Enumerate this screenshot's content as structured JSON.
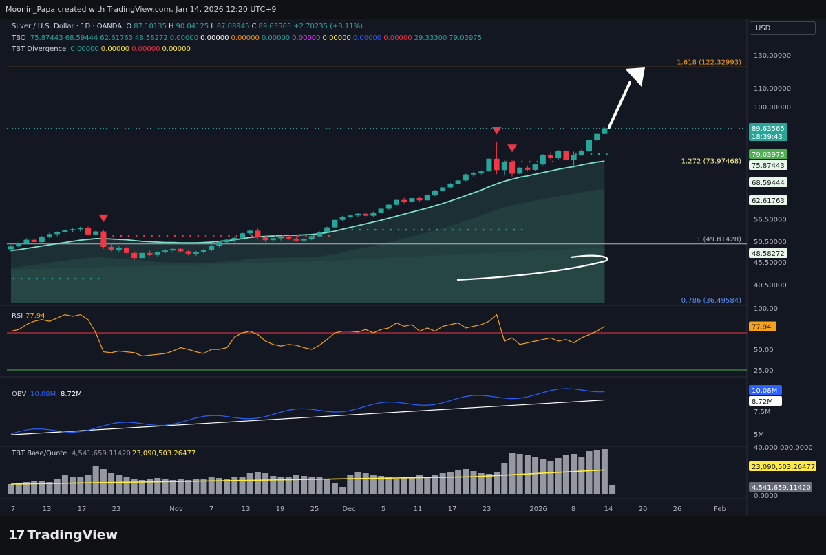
{
  "header": {
    "attribution": "Moonin_Papa created with TradingView.com, Jan 14, 2026 12:20 UTC+9"
  },
  "currency_button": "USD",
  "legend": {
    "symbol": "Silver / U.S. Dollar · 1D · OANDA",
    "ohlc": [
      {
        "k": "O",
        "v": "87.10135"
      },
      {
        "k": "H",
        "v": "90.04125"
      },
      {
        "k": "L",
        "v": "87.08945"
      },
      {
        "k": "C",
        "v": "89.63565"
      },
      {
        "k": "",
        "v": "+2.70235 (+3.11%)"
      }
    ],
    "tbo_label": "TBO",
    "tbo_values": [
      {
        "v": "75.87443",
        "c": "#26a69a"
      },
      {
        "v": "68.59444",
        "c": "#26a69a"
      },
      {
        "v": "62.61763",
        "c": "#26a69a"
      },
      {
        "v": "48.58272",
        "c": "#26a69a"
      },
      {
        "v": "0.00000",
        "c": "#26a69a"
      },
      {
        "v": "0.00000",
        "c": "#ffffff"
      },
      {
        "v": "0.00000",
        "c": "#ff9800"
      },
      {
        "v": "0.00000",
        "c": "#26a69a"
      },
      {
        "v": "0.00000",
        "c": "#e040fb"
      },
      {
        "v": "0.00000",
        "c": "#ffeb3b"
      },
      {
        "v": "0.00000",
        "c": "#2962ff"
      },
      {
        "v": "0.00000",
        "c": "#f23645"
      },
      {
        "v": "29.33300",
        "c": "#26a69a"
      },
      {
        "v": "79.03975",
        "c": "#26a69a"
      }
    ],
    "tbt_label": "TBT Divergence",
    "tbt_values": [
      {
        "v": "0.00000",
        "c": "#26a69a"
      },
      {
        "v": "0.00000",
        "c": "#ffeb3b"
      },
      {
        "v": "0.00000",
        "c": "#f23645"
      },
      {
        "v": "0.00000",
        "c": "#ffeb3b"
      }
    ]
  },
  "colors": {
    "up": "#26a69a",
    "down": "#f23645",
    "background": "#131722",
    "fib_orange": "#f7a21b",
    "fib_yellow": "#fff59d",
    "fib_white": "#b2b5be",
    "rsi": "#f7a21b",
    "obv": "#2962ff",
    "obv_ma": "#ffffff",
    "volume_bar": "#9598a1",
    "volume_ma": "#ffeb3b"
  },
  "price_axis": {
    "ticks": [
      "130.00000",
      "110.00000",
      "100.00000",
      "56.50000",
      "50.50000",
      "45.50000",
      "40.50000"
    ],
    "badges": [
      {
        "text": "89.63565",
        "sub": "18:39:43",
        "color": "#26a69a"
      },
      {
        "text": "79.03975",
        "color": "#26a69a"
      },
      {
        "text": "75.87443",
        "color": "#d1d4dc"
      },
      {
        "text": "68.59444",
        "color": "#d1d4dc"
      },
      {
        "text": "62.61763",
        "color": "#d1d4dc"
      },
      {
        "text": "48.58272",
        "color": "#d1d4dc"
      }
    ]
  },
  "fib_levels": [
    {
      "label": "1.618 (122.32993)",
      "value": 122.32993,
      "color": "#f7a21b"
    },
    {
      "label": "1.272 (73.97468)",
      "value": 73.97468,
      "color": "#fff59d"
    },
    {
      "label": "1 (49.81428)",
      "value": 49.81428,
      "color": "#b2b5be"
    },
    {
      "label": "0.786 (36.49584)",
      "value": 36.49584,
      "color": "#5b8def"
    }
  ],
  "rsi": {
    "label": "RSI",
    "value": "77.94",
    "ticks": [
      "100.00",
      "50.00",
      "25.00"
    ],
    "badge": "77.94"
  },
  "obv": {
    "label": "OBV",
    "value1": "10.08M",
    "value2": "8.72M",
    "ticks": [
      "7.5M",
      "5M"
    ],
    "badge1": "10.08M",
    "badge2": "8.72M"
  },
  "volume": {
    "label": "TBT Base/Quote",
    "value1": "4,541,659.11420",
    "value2": "23,090,503.26477",
    "ticks": [
      "40,000,000.0000",
      "0.0000"
    ],
    "badge1": "23,090,503.26477",
    "badge2": "4,541,659.11420"
  },
  "time_axis": [
    "7",
    "13",
    "17",
    "23",
    "Nov",
    "7",
    "13",
    "19",
    "25",
    "Dec",
    "5",
    "11",
    "17",
    "23",
    "2026",
    "8",
    "14",
    "20",
    "26",
    "Feb"
  ],
  "chart_data": {
    "type": "candlestick",
    "title": "Silver / U.S. Dollar · 1D · OANDA",
    "candles": [
      {
        "o": 48.5,
        "h": 49.6,
        "l": 47.9,
        "c": 49.2
      },
      {
        "o": 49.2,
        "h": 50.4,
        "l": 48.8,
        "c": 50.1
      },
      {
        "o": 50.1,
        "h": 51.3,
        "l": 49.7,
        "c": 50.9
      },
      {
        "o": 50.9,
        "h": 51.6,
        "l": 49.9,
        "c": 50.3
      },
      {
        "o": 50.3,
        "h": 51.9,
        "l": 50.0,
        "c": 51.6
      },
      {
        "o": 51.6,
        "h": 52.8,
        "l": 51.2,
        "c": 52.4
      },
      {
        "o": 52.4,
        "h": 53.1,
        "l": 51.8,
        "c": 52.9
      },
      {
        "o": 52.9,
        "h": 53.8,
        "l": 52.4,
        "c": 53.5
      },
      {
        "o": 53.5,
        "h": 54.0,
        "l": 52.9,
        "c": 53.7
      },
      {
        "o": 53.7,
        "h": 54.4,
        "l": 53.1,
        "c": 54.1
      },
      {
        "o": 54.1,
        "h": 54.6,
        "l": 52.0,
        "c": 52.3
      },
      {
        "o": 52.3,
        "h": 53.4,
        "l": 51.9,
        "c": 53.1
      },
      {
        "o": 53.1,
        "h": 53.6,
        "l": 48.6,
        "c": 49.1
      },
      {
        "o": 49.1,
        "h": 50.1,
        "l": 48.0,
        "c": 48.4
      },
      {
        "o": 48.4,
        "h": 49.4,
        "l": 47.8,
        "c": 48.9
      },
      {
        "o": 48.9,
        "h": 49.2,
        "l": 47.3,
        "c": 47.6
      },
      {
        "o": 47.6,
        "h": 48.0,
        "l": 45.9,
        "c": 46.4
      },
      {
        "o": 46.4,
        "h": 47.9,
        "l": 45.7,
        "c": 47.6
      },
      {
        "o": 47.6,
        "h": 48.2,
        "l": 46.9,
        "c": 47.1
      },
      {
        "o": 47.1,
        "h": 48.0,
        "l": 46.7,
        "c": 47.8
      },
      {
        "o": 47.8,
        "h": 48.6,
        "l": 47.3,
        "c": 48.2
      },
      {
        "o": 48.2,
        "h": 48.9,
        "l": 47.6,
        "c": 48.6
      },
      {
        "o": 48.6,
        "h": 48.9,
        "l": 47.8,
        "c": 48.0
      },
      {
        "o": 48.0,
        "h": 48.3,
        "l": 47.0,
        "c": 47.3
      },
      {
        "o": 47.3,
        "h": 48.1,
        "l": 46.9,
        "c": 47.8
      },
      {
        "o": 47.8,
        "h": 48.6,
        "l": 47.5,
        "c": 48.3
      },
      {
        "o": 48.3,
        "h": 49.6,
        "l": 48.0,
        "c": 49.4
      },
      {
        "o": 49.4,
        "h": 50.6,
        "l": 49.0,
        "c": 50.3
      },
      {
        "o": 50.3,
        "h": 51.2,
        "l": 49.9,
        "c": 50.9
      },
      {
        "o": 50.9,
        "h": 51.6,
        "l": 50.2,
        "c": 51.4
      },
      {
        "o": 51.4,
        "h": 52.9,
        "l": 51.0,
        "c": 52.6
      },
      {
        "o": 52.6,
        "h": 53.6,
        "l": 52.1,
        "c": 53.3
      },
      {
        "o": 53.3,
        "h": 53.9,
        "l": 51.1,
        "c": 51.6
      },
      {
        "o": 51.6,
        "h": 52.1,
        "l": 50.3,
        "c": 50.8
      },
      {
        "o": 50.8,
        "h": 51.6,
        "l": 50.3,
        "c": 51.3
      },
      {
        "o": 51.3,
        "h": 51.9,
        "l": 50.7,
        "c": 51.7
      },
      {
        "o": 51.7,
        "h": 52.0,
        "l": 50.9,
        "c": 51.2
      },
      {
        "o": 51.2,
        "h": 51.8,
        "l": 50.4,
        "c": 50.7
      },
      {
        "o": 50.7,
        "h": 51.4,
        "l": 50.0,
        "c": 51.1
      },
      {
        "o": 51.1,
        "h": 52.0,
        "l": 50.8,
        "c": 51.8
      },
      {
        "o": 51.8,
        "h": 53.2,
        "l": 51.5,
        "c": 53.0
      },
      {
        "o": 53.0,
        "h": 54.4,
        "l": 52.7,
        "c": 54.2
      },
      {
        "o": 54.2,
        "h": 56.6,
        "l": 54.0,
        "c": 56.3
      },
      {
        "o": 56.3,
        "h": 57.5,
        "l": 55.9,
        "c": 57.2
      },
      {
        "o": 57.2,
        "h": 58.0,
        "l": 56.6,
        "c": 57.6
      },
      {
        "o": 57.6,
        "h": 58.4,
        "l": 57.0,
        "c": 58.1
      },
      {
        "o": 58.1,
        "h": 58.6,
        "l": 57.1,
        "c": 57.5
      },
      {
        "o": 57.5,
        "h": 58.7,
        "l": 57.2,
        "c": 58.4
      },
      {
        "o": 58.4,
        "h": 59.9,
        "l": 58.1,
        "c": 59.6
      },
      {
        "o": 59.6,
        "h": 61.1,
        "l": 59.2,
        "c": 60.8
      },
      {
        "o": 60.8,
        "h": 62.6,
        "l": 60.5,
        "c": 62.3
      },
      {
        "o": 62.3,
        "h": 63.0,
        "l": 61.2,
        "c": 61.6
      },
      {
        "o": 61.6,
        "h": 63.2,
        "l": 61.3,
        "c": 62.9
      },
      {
        "o": 62.9,
        "h": 63.4,
        "l": 61.8,
        "c": 62.2
      },
      {
        "o": 62.2,
        "h": 64.2,
        "l": 62.0,
        "c": 63.9
      },
      {
        "o": 63.9,
        "h": 65.6,
        "l": 63.5,
        "c": 65.2
      },
      {
        "o": 65.2,
        "h": 66.7,
        "l": 64.9,
        "c": 66.4
      },
      {
        "o": 66.4,
        "h": 67.9,
        "l": 66.0,
        "c": 67.5
      },
      {
        "o": 67.5,
        "h": 69.2,
        "l": 67.1,
        "c": 68.8
      },
      {
        "o": 68.8,
        "h": 71.2,
        "l": 68.5,
        "c": 70.9
      },
      {
        "o": 70.9,
        "h": 71.9,
        "l": 70.1,
        "c": 71.5
      },
      {
        "o": 71.5,
        "h": 72.4,
        "l": 70.9,
        "c": 72.0
      },
      {
        "o": 72.0,
        "h": 77.2,
        "l": 71.6,
        "c": 76.8
      },
      {
        "o": 76.8,
        "h": 83.6,
        "l": 71.0,
        "c": 72.5
      },
      {
        "o": 72.5,
        "h": 76.1,
        "l": 70.6,
        "c": 75.6
      },
      {
        "o": 75.6,
        "h": 76.4,
        "l": 70.1,
        "c": 71.2
      },
      {
        "o": 71.2,
        "h": 73.8,
        "l": 70.6,
        "c": 73.4
      },
      {
        "o": 73.4,
        "h": 74.2,
        "l": 72.0,
        "c": 72.6
      },
      {
        "o": 72.6,
        "h": 74.9,
        "l": 72.2,
        "c": 74.6
      },
      {
        "o": 74.6,
        "h": 78.6,
        "l": 74.2,
        "c": 78.2
      },
      {
        "o": 78.2,
        "h": 79.4,
        "l": 76.4,
        "c": 77.0
      },
      {
        "o": 77.0,
        "h": 80.3,
        "l": 76.5,
        "c": 79.8
      },
      {
        "o": 79.8,
        "h": 80.6,
        "l": 75.5,
        "c": 76.2
      },
      {
        "o": 76.2,
        "h": 79.6,
        "l": 73.2,
        "c": 78.3
      },
      {
        "o": 78.3,
        "h": 80.5,
        "l": 77.9,
        "c": 79.9
      },
      {
        "o": 79.9,
        "h": 84.8,
        "l": 79.5,
        "c": 84.4
      },
      {
        "o": 84.4,
        "h": 87.4,
        "l": 84.0,
        "c": 87.1
      },
      {
        "o": 87.1,
        "h": 90.04,
        "l": 87.09,
        "c": 89.64
      }
    ],
    "baseline_series": [
      48.2,
      48.4,
      48.7,
      49.0,
      49.3,
      49.6,
      49.9,
      50.2,
      50.5,
      50.8,
      51.0,
      51.2,
      51.2,
      51.1,
      51.0,
      50.9,
      50.7,
      50.5,
      50.4,
      50.3,
      50.2,
      50.2,
      50.1,
      50.1,
      50.1,
      50.2,
      50.3,
      50.5,
      50.7,
      50.9,
      51.2,
      51.5,
      51.7,
      51.8,
      51.9,
      52.0,
      52.1,
      52.1,
      52.2,
      52.3,
      52.5,
      52.8,
      53.2,
      53.7,
      54.2,
      54.7,
      55.2,
      55.7,
      56.2,
      56.8,
      57.4,
      58.0,
      58.6,
      59.2,
      59.8,
      60.5,
      61.2,
      62.0,
      62.8,
      63.7,
      64.6,
      65.5,
      66.6,
      67.6,
      68.5,
      69.2,
      69.9,
      70.4,
      71.0,
      71.6,
      72.2,
      72.8,
      73.3,
      73.8,
      74.4,
      75.0,
      75.5,
      75.87
    ],
    "red_markers_at": [
      12,
      63,
      65
    ]
  }
}
